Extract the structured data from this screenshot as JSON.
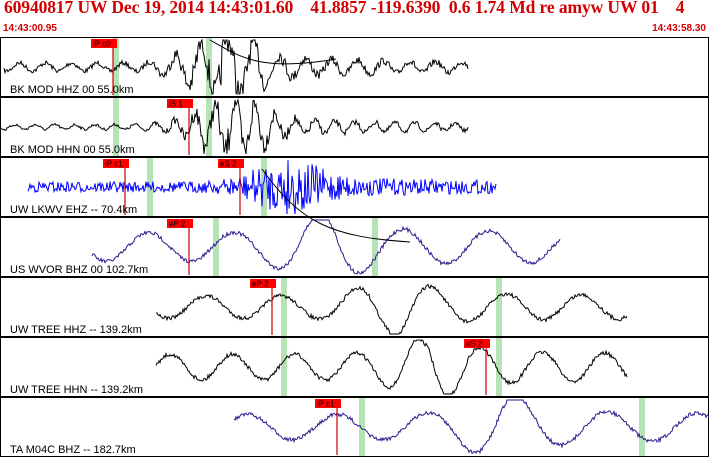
{
  "header": {
    "title": "60940817 UW Dec 19, 2014 14:43:01.60    41.8857 -119.6390  0.6 1.74 Md re amyw UW 01    4",
    "start_time": "14:43:00.95",
    "end_time": "14:43:58.30"
  },
  "colors": {
    "header_text": "#d20000",
    "trace": "#000000",
    "trace_blue": "#0000ff",
    "trace_purple": "#2a1a8c",
    "pick_flag": "#ff0000",
    "pick_line": "#cc0000",
    "window_band": "#b6e2b6",
    "theory_curve": "#000000"
  },
  "traces": [
    {
      "label": "BK MOD HHZ 00 55.0km",
      "color": "trace",
      "picks": [
        {
          "name": "iP c0",
          "t": 0.16
        }
      ],
      "bands": [
        0.163,
        0.295
      ]
    },
    {
      "label": "BK MOD HHN 00 55.0km",
      "color": "trace",
      "picks": [
        {
          "name": "iS 1",
          "t": 0.266
        }
      ],
      "bands": [
        0.163,
        0.295
      ]
    },
    {
      "label": "UW LKWV EHZ -- 70.4km",
      "color": "trace_blue",
      "picks": [
        {
          "name": "iP c1",
          "t": 0.177
        },
        {
          "name": "eS 2",
          "t": 0.338
        }
      ],
      "bands": [
        0.211,
        0.373
      ]
    },
    {
      "label": "US WVOR BHZ 00 102.7km",
      "color": "trace_purple",
      "picks": [
        {
          "name": "eP 2",
          "t": 0.266
        }
      ],
      "bands": [
        0.304,
        0.529
      ]
    },
    {
      "label": "UW TREE HHZ -- 139.2km",
      "color": "trace",
      "picks": [
        {
          "name": "eP 2",
          "t": 0.384
        }
      ],
      "bands": [
        0.4,
        0.704
      ]
    },
    {
      "label": "UW TREE HHN -- 139.2km",
      "color": "trace",
      "picks": [
        {
          "name": "eS 2",
          "t": 0.686
        }
      ],
      "bands": [
        0.4,
        0.704
      ]
    },
    {
      "label": "TA M04C BHZ -- 182.7km",
      "color": "trace_purple",
      "picks": [
        {
          "name": "iP c1",
          "t": 0.475
        }
      ],
      "bands": [
        0.51,
        0.905
      ]
    }
  ]
}
